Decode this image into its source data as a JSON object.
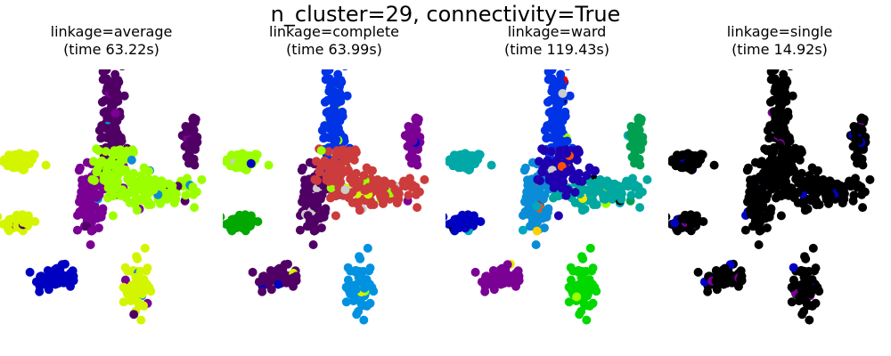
{
  "figure": {
    "suptitle": "n_cluster=29, connectivity=True"
  },
  "chart_data": {
    "type": "scatter",
    "title": "n_cluster=29, connectivity=True",
    "xlabel": "",
    "ylabel": "",
    "axes_visible": false,
    "grid": false,
    "legend": "none",
    "clusters": [
      {
        "id": "blob-left",
        "x": -2.6,
        "y": 0.9,
        "sx": 0.26,
        "sy": 0.1,
        "n": 70
      },
      {
        "id": "blob-far-left",
        "x": -2.7,
        "y": -0.35,
        "sx": 0.22,
        "sy": 0.1,
        "n": 60
      },
      {
        "id": "blob-right",
        "x": 2.3,
        "y": 1.35,
        "sx": 0.12,
        "sy": 0.3,
        "n": 50
      },
      {
        "id": "blob-bottom-left",
        "x": -1.6,
        "y": -1.5,
        "sx": 0.3,
        "sy": 0.12,
        "n": 60
      },
      {
        "id": "blob-bottom-right",
        "x": 0.75,
        "y": -1.7,
        "sx": 0.16,
        "sy": 0.35,
        "n": 60
      },
      {
        "id": "arm-top",
        "x": 0.0,
        "y": 1.8,
        "sx": 0.16,
        "sy": 0.55,
        "n": 110
      },
      {
        "id": "arm-right",
        "x": 1.3,
        "y": 0.25,
        "sx": 0.6,
        "sy": 0.14,
        "n": 100
      },
      {
        "id": "arm-lower-left",
        "x": -0.6,
        "y": 0.15,
        "sx": 0.18,
        "sy": 0.35,
        "n": 80
      },
      {
        "id": "center",
        "x": 0.2,
        "y": 0.75,
        "sx": 0.3,
        "sy": 0.25,
        "n": 80
      }
    ],
    "panels": [
      {
        "title_line1": "linkage=average",
        "title_line2": "(time 63.22s)",
        "colors": {
          "blob-left": "#d4f500",
          "blob-far-left": "#d4f500",
          "blob-right": "#500065",
          "blob-bottom-left": "#0000c0",
          "blob-bottom-right": "#d4f500",
          "arm-top": "#500065",
          "arm-right": "#9cff00",
          "arm-lower-left": "#7b0094",
          "center": "#9cff00"
        },
        "accent_colors": [
          "#0a8cd6",
          "#7b0094",
          "#500065"
        ]
      },
      {
        "title_line1": "linkage=complete",
        "title_line2": "(time 63.99s)",
        "colors": {
          "blob-left": "#9cff00",
          "blob-far-left": "#00a800",
          "blob-right": "#7b0094",
          "blob-bottom-left": "#500065",
          "blob-bottom-right": "#0092e0",
          "arm-top": "#0033e6",
          "arm-right": "#cc3c3c",
          "arm-lower-left": "#500065",
          "center": "#cc3c3c"
        },
        "accent_colors": [
          "#0000c0",
          "#d4f500",
          "#cccccc",
          "#9cff00"
        ]
      },
      {
        "title_line1": "linkage=ward",
        "title_line2": "(time 119.43s)",
        "colors": {
          "blob-left": "#00a8a8",
          "blob-far-left": "#0000c0",
          "blob-right": "#00a050",
          "blob-bottom-left": "#7b0094",
          "blob-bottom-right": "#00d800",
          "arm-top": "#0033e6",
          "arm-right": "#00a8a0",
          "arm-lower-left": "#0a8cd6",
          "center": "#1f00b0"
        },
        "accent_colors": [
          "#e00000",
          "#ffd000",
          "#00a8c0",
          "#000000",
          "#f0e800",
          "#ff5000",
          "#9cff00",
          "#cccccc"
        ]
      },
      {
        "title_line1": "linkage=single",
        "title_line2": "(time 14.92s)",
        "colors": {
          "blob-left": "#000000",
          "blob-far-left": "#000000",
          "blob-right": "#000000",
          "blob-bottom-left": "#000000",
          "blob-bottom-right": "#000000",
          "arm-top": "#000000",
          "arm-right": "#000000",
          "arm-lower-left": "#000000",
          "center": "#000000"
        },
        "accent_colors": [
          "#7b0094",
          "#0000c0"
        ]
      }
    ]
  }
}
